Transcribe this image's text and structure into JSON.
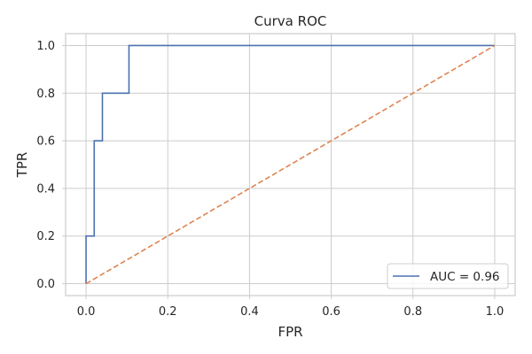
{
  "chart_data": {
    "type": "line",
    "title": "Curva ROC",
    "xlabel": "FPR",
    "ylabel": "TPR",
    "xlim": [
      -0.05,
      1.05
    ],
    "ylim": [
      -0.05,
      1.05
    ],
    "xticks": [
      0.0,
      0.2,
      0.4,
      0.6,
      0.8,
      1.0
    ],
    "yticks": [
      0.0,
      0.2,
      0.4,
      0.6,
      0.8,
      1.0
    ],
    "xtick_labels": [
      "0.0",
      "0.2",
      "0.4",
      "0.6",
      "0.8",
      "1.0"
    ],
    "ytick_labels": [
      "0.0",
      "0.2",
      "0.4",
      "0.6",
      "0.8",
      "1.0"
    ],
    "grid": true,
    "legend_position": "lower-right",
    "series": [
      {
        "name": "AUC = 0.96",
        "color": "#4c72b0",
        "style": "solid",
        "step": true,
        "x": [
          0.0,
          0.0,
          0.02,
          0.02,
          0.04,
          0.04,
          0.105,
          0.105,
          1.0
        ],
        "y": [
          0.0,
          0.2,
          0.2,
          0.6,
          0.6,
          0.8,
          0.8,
          1.0,
          1.0
        ]
      },
      {
        "color": "#dd8452",
        "style": "dashed",
        "x": [
          0.0,
          1.0
        ],
        "y": [
          0.0,
          1.0
        ]
      }
    ]
  }
}
